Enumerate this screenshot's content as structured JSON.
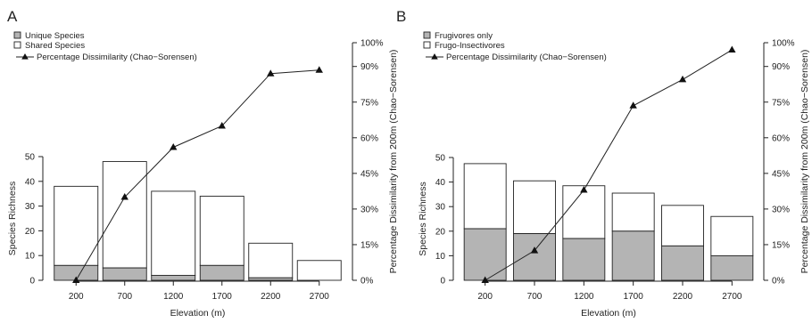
{
  "colors": {
    "lower": "#b4b4b4",
    "upper": "#ffffff",
    "ink": "#222222"
  },
  "chart_data": [
    {
      "panel": "A",
      "type": "bar",
      "categories": [
        "200",
        "700",
        "1200",
        "1700",
        "2200",
        "2700"
      ],
      "series": [
        {
          "name": "Unique Species",
          "values": [
            6,
            5,
            2,
            6,
            1,
            0
          ]
        },
        {
          "name": "Shared Species",
          "values": [
            32,
            43,
            34,
            28,
            14,
            8
          ]
        }
      ],
      "line": {
        "name": "Percentage Dissimilarity (Chao−Sorensen)",
        "values": [
          0,
          35,
          56,
          65,
          87,
          88.5
        ]
      },
      "stacked": true,
      "xlabel": "Elevation (m)",
      "ylabel": "Species Richness",
      "y2label": "Percentage Dissimilarity from 200m (Chao−Sorensen)",
      "ylim": [
        0,
        50
      ],
      "yticks": [
        "0",
        "10",
        "20",
        "30",
        "40",
        "50"
      ],
      "y2lim": [
        0,
        100
      ],
      "y2ticks": [
        "0%",
        "15%",
        "30%",
        "45%",
        "60%",
        "75%",
        "90%",
        "100%"
      ],
      "legend": "top-left",
      "grid": false
    },
    {
      "panel": "B",
      "type": "bar",
      "categories": [
        "200",
        "700",
        "1200",
        "1700",
        "2200",
        "2700"
      ],
      "series": [
        {
          "name": "Frugivores only",
          "values": [
            21,
            19,
            17,
            20,
            14,
            10
          ]
        },
        {
          "name": "Frugo-Insectivores",
          "values": [
            26.5,
            21.5,
            21.5,
            15.5,
            16.5,
            16
          ]
        }
      ],
      "line": {
        "name": "Percentage Dissimilarity (Chao−Sorensen)",
        "values": [
          0,
          12.5,
          38,
          73.5,
          84.5,
          97
        ]
      },
      "stacked": true,
      "xlabel": "Elevation (m)",
      "ylabel": "Species Richness",
      "y2label": "Percentage Dissimilarity from 200m (Chao−Sorensen)",
      "ylim": [
        0,
        50
      ],
      "yticks": [
        "0",
        "10",
        "20",
        "30",
        "40",
        "50"
      ],
      "y2lim": [
        0,
        100
      ],
      "y2ticks": [
        "0%",
        "15%",
        "30%",
        "45%",
        "60%",
        "75%",
        "90%",
        "100%"
      ],
      "legend": "top-left",
      "grid": false
    }
  ]
}
